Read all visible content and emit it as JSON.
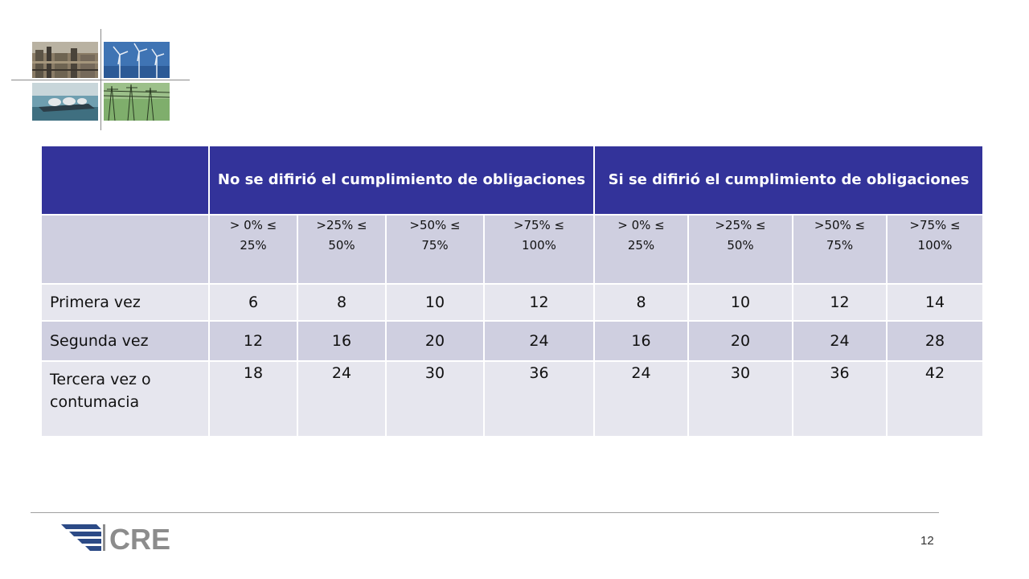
{
  "table": {
    "group_headers": [
      "No se difirió el cumplimiento de obligaciones",
      "Si se difirió el cumplimiento de obligaciones"
    ],
    "sub_headers": [
      "> 0% ≤ 25%",
      ">25% ≤ 50%",
      ">50% ≤ 75%",
      ">75% ≤ 100%",
      "> 0% ≤ 25%",
      ">25% ≤ 50%",
      ">50% ≤ 75%",
      ">75% ≤ 100%"
    ],
    "rows": [
      {
        "label": "Primera vez",
        "values": [
          "6",
          "8",
          "10",
          "12",
          "8",
          "10",
          "12",
          "14"
        ]
      },
      {
        "label": "Segunda vez",
        "values": [
          "12",
          "16",
          "20",
          "24",
          "16",
          "20",
          "24",
          "28"
        ]
      },
      {
        "label": "Tercera vez o contumacia",
        "values": [
          "18",
          "24",
          "30",
          "36",
          "24",
          "30",
          "36",
          "42"
        ]
      }
    ]
  },
  "logo": {
    "text": "CRE"
  },
  "page_number": "12",
  "colors": {
    "header_bg": "#33339a",
    "subheader_bg": "#cfcfe0",
    "row_light": "#e6e6ee",
    "row_dark": "#cfcfe0",
    "logo_blue": "#2c4a86",
    "logo_gray": "#8c8c8c"
  }
}
